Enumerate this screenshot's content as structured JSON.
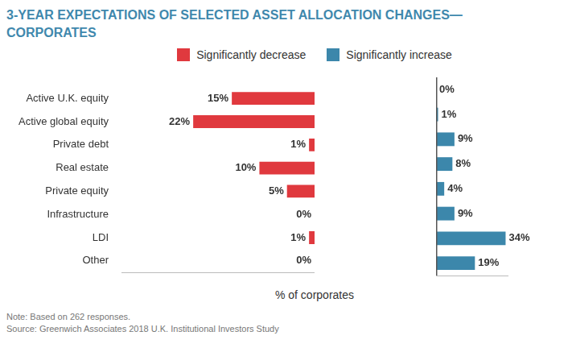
{
  "chart_data": {
    "type": "bar",
    "orientation": "horizontal",
    "title": "3-YEAR EXPECTATIONS OF SELECTED ASSET ALLOCATION CHANGES—CORPORATES",
    "categories": [
      "Active U.K. equity",
      "Active global equity",
      "Private debt",
      "Real estate",
      "Private equity",
      "Infrastructure",
      "LDI",
      "Other"
    ],
    "series": [
      {
        "name": "Significantly decrease",
        "color": "#e0393e",
        "values": [
          15,
          22,
          1,
          10,
          5,
          0,
          1,
          0
        ],
        "value_labels": [
          "15%",
          "22%",
          "1%",
          "10%",
          "5%",
          "0%",
          "1%",
          "0%"
        ]
      },
      {
        "name": "Significantly increase",
        "color": "#3c87ab",
        "values": [
          0,
          1,
          9,
          8,
          4,
          9,
          34,
          19
        ],
        "value_labels": [
          "0%",
          "1%",
          "9%",
          "8%",
          "4%",
          "9%",
          "34%",
          "19%"
        ]
      }
    ],
    "xlabel": "% of corporates",
    "xlim": [
      0,
      35
    ],
    "tick_labels": "y",
    "data_labels": true,
    "grid": false,
    "legend": "top",
    "notes": [
      "Note: Based on 262 responses.",
      "Source: Greenwich Associates 2018 U.K. Institutional Investors Study"
    ]
  }
}
